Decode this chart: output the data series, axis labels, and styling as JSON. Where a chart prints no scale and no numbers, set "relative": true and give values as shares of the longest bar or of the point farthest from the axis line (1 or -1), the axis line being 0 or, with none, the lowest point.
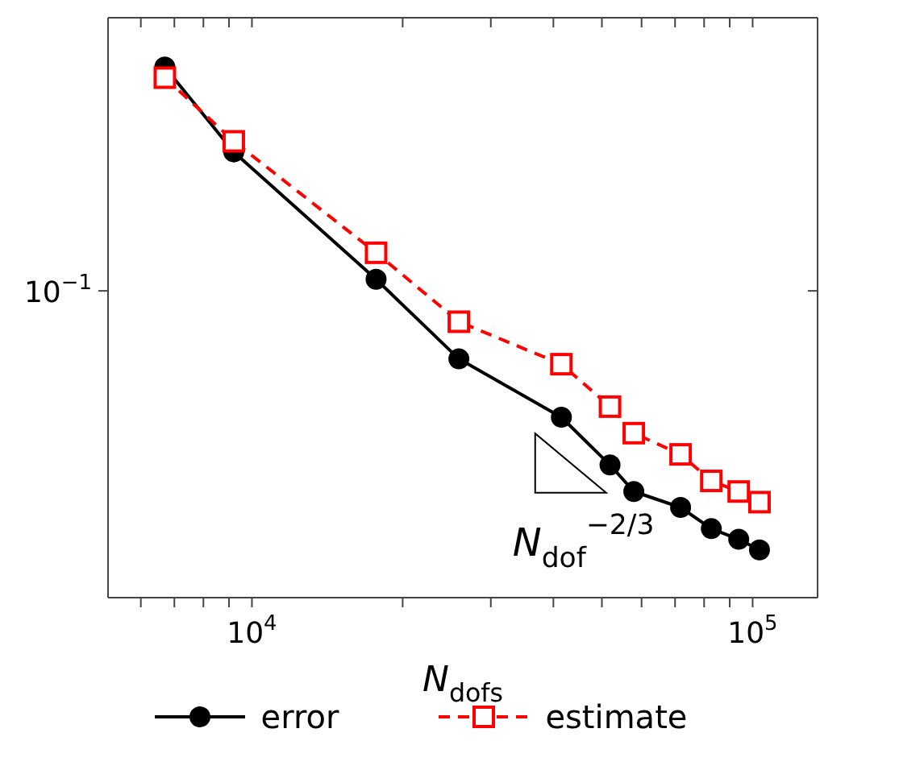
{
  "chart_data": {
    "type": "line",
    "relative": true,
    "xlabel": "N$_{dofs}$",
    "x": [
      6700,
      9200,
      17700,
      25900,
      41500,
      51900,
      57900,
      71800,
      82700,
      93800,
      103200
    ],
    "series": [
      {
        "name": "error",
        "color": "#000000",
        "marker": "circle",
        "line_style": "solid",
        "values": [
          1,
          0.84,
          0.6,
          0.45,
          0.34,
          0.25,
          0.2,
          0.17,
          0.13,
          0.11,
          0.09
        ]
      },
      {
        "name": "estimate",
        "color": "#ff0000",
        "marker": "square",
        "line_style": "dashed",
        "values": [
          0.98,
          0.86,
          0.65,
          0.52,
          0.44,
          0.36,
          0.31,
          0.27,
          0.22,
          0.2,
          0.18
        ]
      }
    ],
    "log": "x",
    "xlim": [
      5160,
      134800
    ],
    "xticks": [
      {
        "value": 6000,
        "label": null
      },
      {
        "value": 7000,
        "label": null
      },
      {
        "value": 8000,
        "label": null
      },
      {
        "value": 9000,
        "label": null
      },
      {
        "value": 10000,
        "label": "10$^{4}$"
      },
      {
        "value": 20000,
        "label": null
      },
      {
        "value": 30000,
        "label": null
      },
      {
        "value": 40000,
        "label": null
      },
      {
        "value": 50000,
        "label": null
      },
      {
        "value": 60000,
        "label": null
      },
      {
        "value": 70000,
        "label": null
      },
      {
        "value": 80000,
        "label": null
      },
      {
        "value": 90000,
        "label": null
      },
      {
        "value": 100000,
        "label": "10$^{5}$"
      }
    ],
    "grid": false,
    "legend": "bottom",
    "annotations": [
      "10$^{−1}$",
      "N$_{dof}$$^{−2/3}$"
    ]
  }
}
